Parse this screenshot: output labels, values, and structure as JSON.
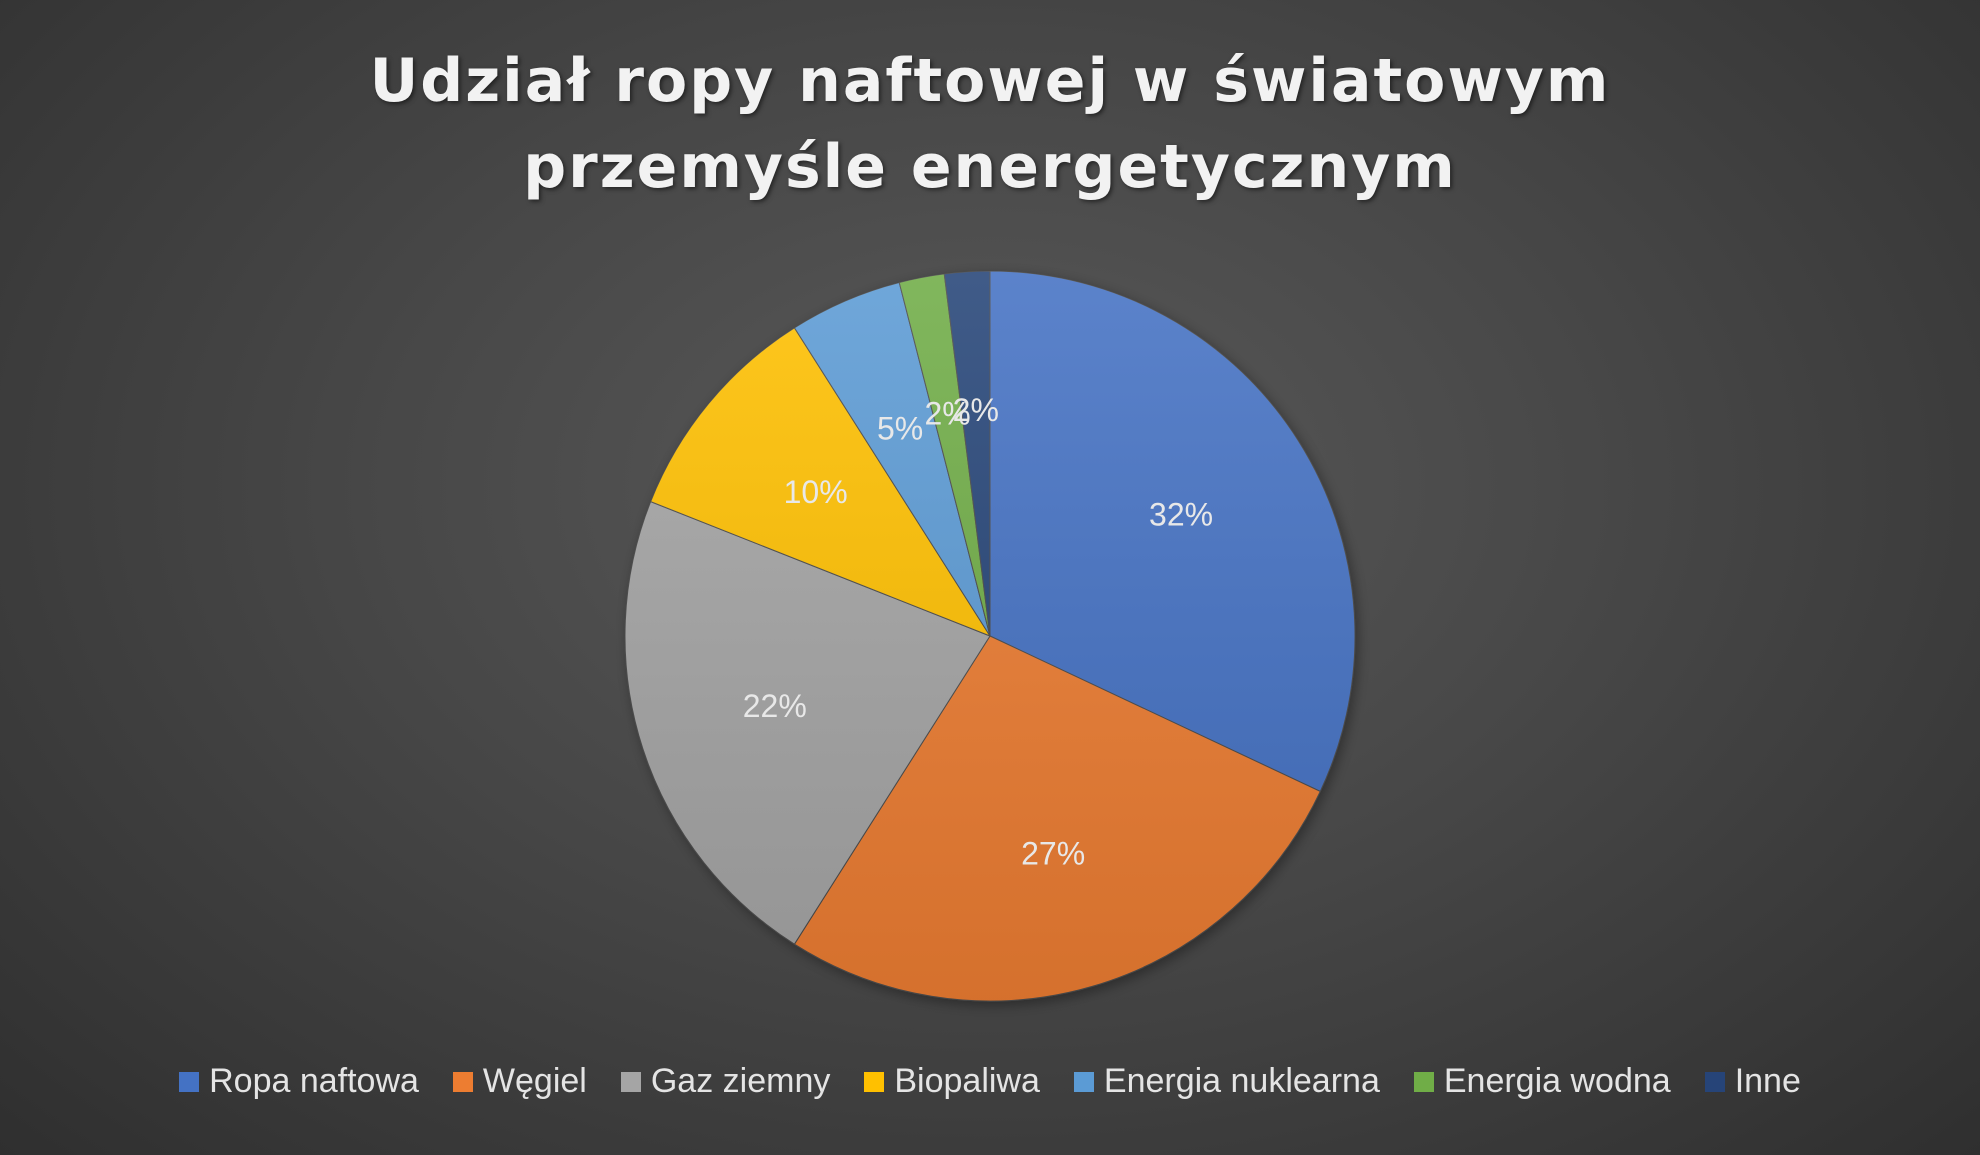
{
  "chart_data": {
    "type": "pie",
    "title": [
      "Udział ropy naftowej w światowym",
      "przemyśle energetycznym"
    ],
    "categories": [
      "Ropa naftowa",
      "Węgiel",
      "Gaz ziemny",
      "Biopaliwa",
      "Energia nuklearna",
      "Energia wodna",
      "Inne"
    ],
    "values": [
      32,
      27,
      22,
      10,
      5,
      2,
      2
    ],
    "labels": [
      "32%",
      "27%",
      "22%",
      "10%",
      "5%",
      "2%",
      "2%"
    ],
    "colors": [
      "#4472C4",
      "#ED7D31",
      "#A5A5A5",
      "#FFC000",
      "#5B9BD5",
      "#70AD47",
      "#264478"
    ],
    "start_angle": "12 o'clock",
    "direction": "clockwise",
    "legend_position": "bottom"
  }
}
